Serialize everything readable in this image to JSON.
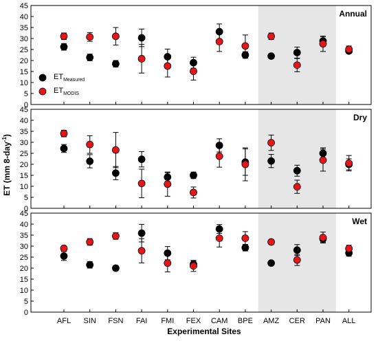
{
  "chart_data": {
    "type": "scatter",
    "xlabel": "Experimental Sites",
    "ylabel": "ET (mm 8-day",
    "ylabel_sup": "-1",
    "ylabel_end": ")",
    "categories": [
      "AFL",
      "SIN",
      "FSN",
      "FAI",
      "FMI",
      "FEX",
      "CAM",
      "BPE",
      "AMZ",
      "CER",
      "PAN",
      "ALL"
    ],
    "shaded_categories": [
      "AMZ",
      "CER",
      "PAN"
    ],
    "ylim": [
      0,
      45
    ],
    "yticks": [
      0,
      5,
      10,
      15,
      20,
      25,
      30,
      35,
      40,
      45
    ],
    "legend": {
      "placement": "left",
      "entries": [
        {
          "main": "ET",
          "sub": "Measured",
          "color": "#000000"
        },
        {
          "main": "ET",
          "sub": "MODIS",
          "color": "#e8141a"
        }
      ]
    },
    "colors": {
      "measured": "#000000",
      "modis": "#e8141a",
      "shade": "#e6e6e6"
    },
    "panels": [
      {
        "title": "Annual",
        "series": [
          {
            "name": "Measured",
            "values": [
              26.2,
              21.4,
              18.5,
              30.3,
              21.7,
              19.0,
              33.1,
              22.5,
              22.0,
              23.6,
              28.9,
              24.3
            ],
            "errors": [
              1.5,
              1.5,
              1.5,
              4.0,
              3.5,
              2.5,
              3.5,
              1.5,
              1.0,
              2.5,
              2.0,
              1.0
            ]
          },
          {
            "name": "MODIS",
            "values": [
              31.0,
              30.7,
              31.0,
              20.8,
              17.5,
              15.1,
              28.6,
              26.6,
              31.0,
              17.9,
              27.6,
              25.1
            ],
            "errors": [
              1.5,
              2.0,
              4.0,
              6.5,
              5.0,
              4.0,
              4.5,
              5.0,
              1.5,
              3.0,
              3.5,
              1.5
            ]
          }
        ]
      },
      {
        "title": "Dry",
        "series": [
          {
            "name": "Measured",
            "values": [
              27.2,
              21.4,
              16.0,
              22.3,
              14.2,
              15.0,
              28.6,
              21.0,
              21.5,
              17.1,
              25.0,
              20.0
            ],
            "errors": [
              1.8,
              3.0,
              3.0,
              3.5,
              2.0,
              1.5,
              3.0,
              6.0,
              3.0,
              2.5,
              2.5,
              2.5
            ]
          },
          {
            "name": "MODIS",
            "values": [
              34.0,
              29.0,
              26.5,
              11.3,
              11.0,
              7.2,
              23.7,
              20.0,
              29.8,
              9.8,
              21.9,
              20.5
            ],
            "errors": [
              1.5,
              4.0,
              8.0,
              6.5,
              5.5,
              2.5,
              5.0,
              7.5,
              3.5,
              3.0,
              5.0,
              3.5
            ]
          }
        ]
      },
      {
        "title": "Wet",
        "series": [
          {
            "name": "Measured",
            "values": [
              25.5,
              21.5,
              20.0,
              35.9,
              26.8,
              21.8,
              37.8,
              29.3,
              22.3,
              28.2,
              33.3,
              26.9
            ],
            "errors": [
              2.0,
              1.5,
              1.0,
              4.0,
              3.0,
              1.5,
              2.0,
              1.5,
              1.0,
              2.5,
              1.5,
              1.5
            ]
          },
          {
            "name": "MODIS",
            "values": [
              29.0,
              31.9,
              34.6,
              27.9,
              22.3,
              21.0,
              33.6,
              33.6,
              31.9,
              23.7,
              33.9,
              28.9
            ],
            "errors": [
              1.0,
              1.5,
              1.5,
              5.5,
              4.0,
              2.5,
              4.0,
              3.0,
              1.0,
              2.5,
              2.5,
              1.5
            ]
          }
        ]
      }
    ]
  }
}
